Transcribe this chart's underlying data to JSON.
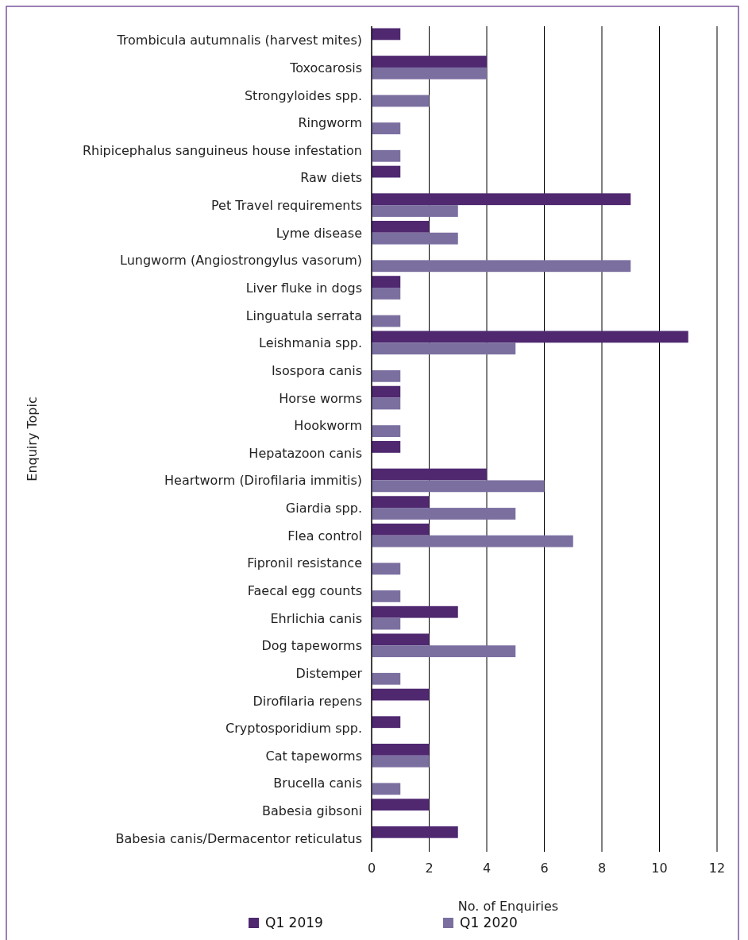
{
  "chart_data": {
    "type": "bar",
    "orientation": "horizontal",
    "xlabel": "No. of Enquiries",
    "ylabel": "Enquiry Topic",
    "categories": [
      "Trombicula autumnalis (harvest mites)",
      "Toxocarosis",
      "Strongyloides spp.",
      "Ringworm",
      "Rhipicephalus sanguineus house infestation",
      "Raw diets",
      "Pet Travel requirements",
      "Lyme disease",
      "Lungworm (Angiostrongylus vasorum)",
      "Liver fluke in dogs",
      "Linguatula serrata",
      "Leishmania spp.",
      "Isospora canis",
      "Horse worms",
      "Hookworm",
      "Hepatazoon canis",
      "Heartworm (Dirofilaria immitis)",
      "Giardia spp.",
      "Flea control",
      "Fipronil resistance",
      "Faecal egg counts",
      "Ehrlichia canis",
      "Dog tapeworms",
      "Distemper",
      "Dirofilaria repens",
      "Cryptosporidium spp.",
      "Cat tapeworms",
      "Brucella canis",
      "Babesia gibsoni",
      "Babesia canis/Dermacentor reticulatus"
    ],
    "series": [
      {
        "name": "Q1 2019",
        "color": "#4f2870",
        "values": [
          1,
          4,
          null,
          null,
          null,
          1,
          9,
          2,
          null,
          1,
          null,
          11,
          null,
          1,
          null,
          1,
          4,
          2,
          2,
          null,
          null,
          3,
          2,
          null,
          2,
          1,
          2,
          null,
          2,
          3
        ]
      },
      {
        "name": "Q1 2020",
        "color": "#7b6fa0",
        "values": [
          null,
          4,
          2,
          1,
          1,
          null,
          3,
          3,
          9,
          1,
          1,
          5,
          1,
          1,
          1,
          null,
          6,
          5,
          7,
          1,
          1,
          1,
          5,
          1,
          null,
          null,
          2,
          1,
          null,
          null
        ]
      }
    ],
    "xlim": [
      0,
      12
    ],
    "xticks": [
      0,
      2,
      4,
      6,
      8,
      10,
      12
    ],
    "grid": "x",
    "legend": "bottom"
  }
}
